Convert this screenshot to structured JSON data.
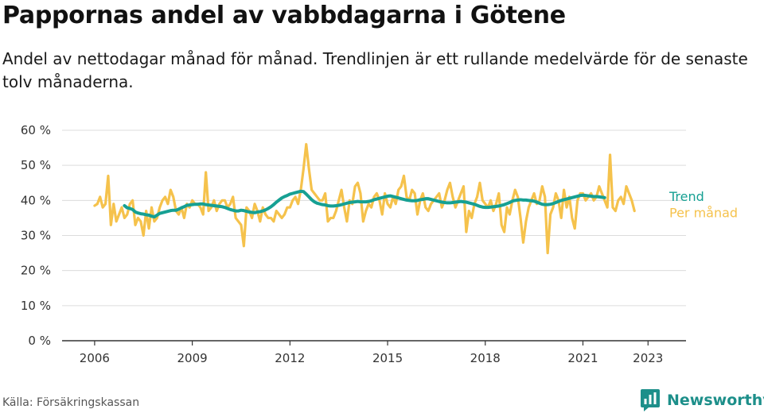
{
  "title": "Pappornas andel av vabbdagarna i Götene",
  "subtitle": "Andel av nettodagar månad för månad. Trendlinjen är ett rullande medelvärde för de senaste tolv månaderna.",
  "source": "Källa: Försäkringskassan",
  "logo": {
    "name": "Newsworthy",
    "icon": "newsworthy-logo-icon",
    "color": "#1d8f8a"
  },
  "colors": {
    "monthly": "#f5c24c",
    "trend": "#16a093",
    "gridline": "#dcdcdc",
    "axis": "#333333"
  },
  "chart_data": {
    "type": "line",
    "x_unit": "month",
    "xlim": [
      "2005-01",
      "2024-03"
    ],
    "ylim": [
      0,
      60
    ],
    "yticks": [
      0,
      10,
      20,
      30,
      40,
      50,
      60
    ],
    "ytick_labels": [
      "0 %",
      "10 %",
      "20 %",
      "30 %",
      "40 %",
      "50 %",
      "60 %"
    ],
    "xticks": [
      "2006-01",
      "2009-01",
      "2012-01",
      "2015-01",
      "2018-01",
      "2021-01",
      "2023-01"
    ],
    "xtick_labels": [
      "2006",
      "2009",
      "2012",
      "2015",
      "2018",
      "2021",
      "2023"
    ],
    "grid": "horizontal",
    "legend": "right end of lines",
    "series": [
      {
        "name": "Per månad",
        "color": "#f5c24c",
        "start": "2006-01",
        "values": [
          38.5,
          39,
          41,
          38,
          39,
          47,
          33,
          39,
          34,
          36,
          38,
          35,
          36,
          39,
          40,
          33,
          35,
          34,
          30,
          37,
          32,
          38,
          34,
          35,
          38,
          40,
          41,
          39,
          43,
          41,
          37,
          36,
          38,
          35,
          39,
          38,
          40,
          39,
          39,
          38,
          36,
          48,
          37,
          38,
          40,
          37,
          39,
          40,
          40,
          38,
          39,
          41,
          35,
          34,
          33,
          27,
          38,
          37,
          35,
          39,
          37,
          34,
          38,
          36,
          35,
          35,
          34,
          37,
          36,
          35,
          36,
          38,
          38,
          40,
          41,
          39,
          43,
          49,
          56,
          49,
          43,
          42,
          41,
          40,
          40,
          42,
          34,
          35,
          35,
          37,
          40,
          43,
          38,
          34,
          40,
          39,
          44,
          45,
          42,
          34,
          37,
          39,
          38,
          41,
          42,
          40,
          36,
          42,
          39,
          38,
          41,
          39,
          43,
          44,
          47,
          41,
          40,
          43,
          42,
          36,
          40,
          42,
          38,
          37,
          39,
          40,
          41,
          42,
          38,
          40,
          43,
          45,
          41,
          38,
          40,
          42,
          44,
          31,
          37,
          35,
          39,
          41,
          45,
          40,
          39,
          38,
          40,
          37,
          39,
          42,
          33,
          31,
          38,
          36,
          40,
          43,
          41,
          35,
          28,
          34,
          38,
          40,
          42,
          39,
          40,
          44,
          41,
          25,
          36,
          38,
          42,
          40,
          35,
          43,
          38,
          41,
          35,
          32,
          40,
          42,
          42,
          40,
          41,
          42,
          40,
          41,
          44,
          42,
          40,
          38,
          53,
          38,
          37,
          40,
          41,
          39,
          44,
          42,
          40,
          37
        ]
      },
      {
        "name": "Trend",
        "color": "#16a093",
        "start": "2006-12",
        "values": [
          38.5,
          37.9,
          37.7,
          37.4,
          36.7,
          36.4,
          36.2,
          36.1,
          35.9,
          35.8,
          35.5,
          35.3,
          35.8,
          36.3,
          36.5,
          36.7,
          36.9,
          37.1,
          37.2,
          37.2,
          37.5,
          37.9,
          38.2,
          38.6,
          38.7,
          38.8,
          38.9,
          38.9,
          39.0,
          39.0,
          38.8,
          38.7,
          38.6,
          38.5,
          38.4,
          38.3,
          38.2,
          38.0,
          37.7,
          37.4,
          37.2,
          37.0,
          37.0,
          37.2,
          37.1,
          36.9,
          36.7,
          36.6,
          36.5,
          36.7,
          36.8,
          37.0,
          37.3,
          37.7,
          38.2,
          38.8,
          39.5,
          40.1,
          40.7,
          41.1,
          41.4,
          41.8,
          42.0,
          42.2,
          42.4,
          42.6,
          42.5,
          41.8,
          41.0,
          40.2,
          39.6,
          39.2,
          39.0,
          38.8,
          38.7,
          38.5,
          38.4,
          38.4,
          38.5,
          38.6,
          38.8,
          39.0,
          39.2,
          39.4,
          39.5,
          39.6,
          39.7,
          39.6,
          39.6,
          39.6,
          39.7,
          39.9,
          40.2,
          40.4,
          40.6,
          40.8,
          41.0,
          41.2,
          41.3,
          41.1,
          40.9,
          40.7,
          40.5,
          40.3,
          40.1,
          40.0,
          39.9,
          39.9,
          40.0,
          40.2,
          40.3,
          40.5,
          40.5,
          40.3,
          40.1,
          39.9,
          39.7,
          39.5,
          39.4,
          39.3,
          39.3,
          39.4,
          39.5,
          39.6,
          39.7,
          39.6,
          39.5,
          39.3,
          39.1,
          38.9,
          38.6,
          38.3,
          38.1,
          38.0,
          38.0,
          38.1,
          38.2,
          38.3,
          38.4,
          38.6,
          38.8,
          39.1,
          39.4,
          39.8,
          40.0,
          40.1,
          40.2,
          40.1,
          40.1,
          40.0,
          39.9,
          39.8,
          39.5,
          39.2,
          38.9,
          38.8,
          38.8,
          38.9,
          39.1,
          39.4,
          39.7,
          40.0,
          40.2,
          40.4,
          40.6,
          40.8,
          41.0,
          41.2,
          41.4,
          41.5,
          41.4,
          41.3,
          41.2,
          41.1,
          41.1,
          41.0,
          40.9,
          40.8
        ]
      }
    ]
  }
}
